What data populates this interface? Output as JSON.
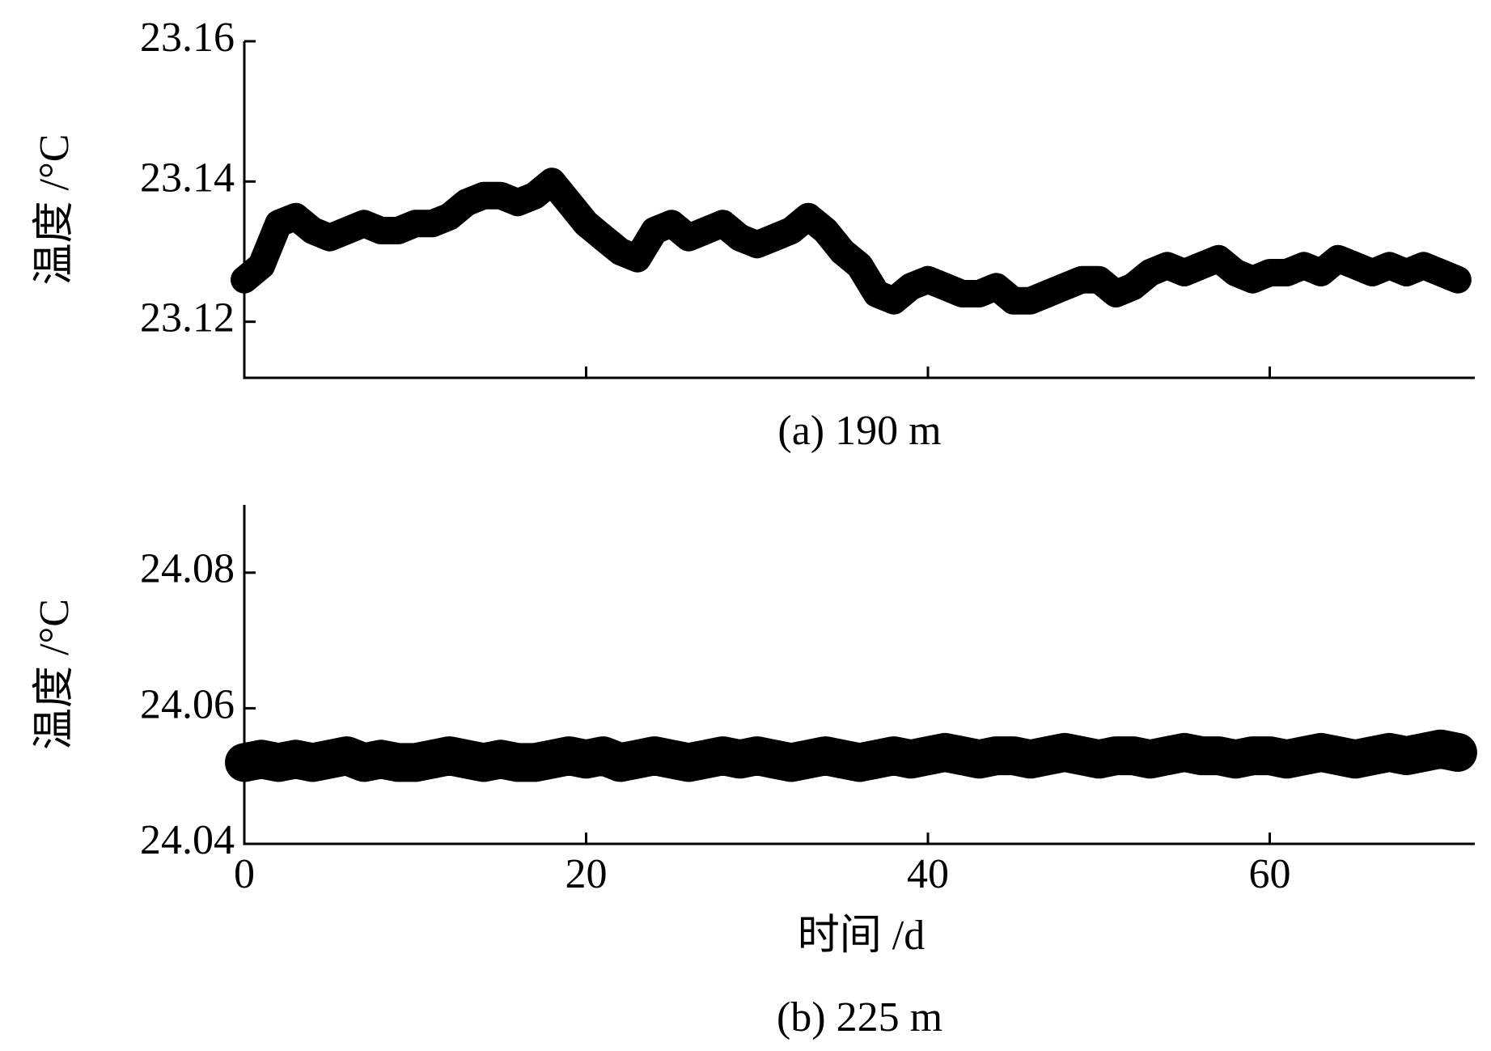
{
  "chart_data": [
    {
      "type": "line",
      "caption": "(a) 190 m",
      "y_label": "温度 /°C",
      "x": [
        0,
        1,
        2,
        3,
        4,
        5,
        6,
        7,
        8,
        9,
        10,
        11,
        12,
        13,
        14,
        15,
        16,
        17,
        18,
        19,
        20,
        21,
        22,
        23,
        24,
        25,
        26,
        27,
        28,
        29,
        30,
        31,
        32,
        33,
        34,
        35,
        36,
        37,
        38,
        39,
        40,
        41,
        42,
        43,
        44,
        45,
        46,
        47,
        48,
        49,
        50,
        51,
        52,
        53,
        54,
        55,
        56,
        57,
        58,
        59,
        60,
        61,
        62,
        63,
        64,
        65,
        66,
        67,
        68,
        69,
        70,
        71
      ],
      "series": [
        {
          "color": "#000000",
          "values": [
            23.126,
            23.128,
            23.134,
            23.135,
            23.133,
            23.132,
            23.133,
            23.134,
            23.133,
            23.133,
            23.134,
            23.134,
            23.135,
            23.137,
            23.138,
            23.138,
            23.137,
            23.138,
            23.14,
            23.137,
            23.134,
            23.132,
            23.13,
            23.129,
            23.133,
            23.134,
            23.132,
            23.133,
            23.134,
            23.132,
            23.131,
            23.132,
            23.133,
            23.135,
            23.133,
            23.13,
            23.128,
            23.124,
            23.123,
            23.125,
            23.126,
            23.125,
            23.124,
            23.124,
            23.125,
            23.123,
            23.123,
            23.124,
            23.125,
            23.126,
            23.126,
            23.124,
            23.125,
            23.127,
            23.128,
            23.127,
            23.128,
            23.129,
            23.127,
            23.126,
            23.127,
            23.127,
            23.128,
            23.127,
            23.129,
            23.128,
            23.127,
            23.128,
            23.127,
            23.128,
            23.127,
            23.126
          ]
        }
      ],
      "xlim": [
        0,
        72
      ],
      "ylim": [
        23.112,
        23.16
      ],
      "yticks": [
        23.12,
        23.14,
        23.16
      ]
    },
    {
      "type": "line",
      "caption": "(b) 225 m",
      "y_label": "温度 /°C",
      "x_label": "时间 /d",
      "x": [
        0,
        1,
        2,
        3,
        4,
        5,
        6,
        7,
        8,
        9,
        10,
        11,
        12,
        13,
        14,
        15,
        16,
        17,
        18,
        19,
        20,
        21,
        22,
        23,
        24,
        25,
        26,
        27,
        28,
        29,
        30,
        31,
        32,
        33,
        34,
        35,
        36,
        37,
        38,
        39,
        40,
        41,
        42,
        43,
        44,
        45,
        46,
        47,
        48,
        49,
        50,
        51,
        52,
        53,
        54,
        55,
        56,
        57,
        58,
        59,
        60,
        61,
        62,
        63,
        64,
        65,
        66,
        67,
        68,
        69,
        70,
        71
      ],
      "series": [
        {
          "color": "#000000",
          "values": [
            24.052,
            24.0525,
            24.052,
            24.0525,
            24.052,
            24.0525,
            24.053,
            24.052,
            24.0525,
            24.052,
            24.052,
            24.0525,
            24.053,
            24.0525,
            24.052,
            24.0525,
            24.052,
            24.052,
            24.0525,
            24.053,
            24.0525,
            24.053,
            24.052,
            24.0525,
            24.053,
            24.0525,
            24.052,
            24.0525,
            24.053,
            24.0525,
            24.053,
            24.0525,
            24.052,
            24.0525,
            24.053,
            24.0525,
            24.052,
            24.0525,
            24.053,
            24.0525,
            24.053,
            24.0535,
            24.053,
            24.0525,
            24.053,
            24.053,
            24.0525,
            24.053,
            24.0535,
            24.053,
            24.0525,
            24.053,
            24.053,
            24.0525,
            24.053,
            24.0535,
            24.053,
            24.053,
            24.0525,
            24.053,
            24.053,
            24.0525,
            24.053,
            24.0535,
            24.053,
            24.0525,
            24.053,
            24.0535,
            24.053,
            24.0535,
            24.054,
            24.0535
          ]
        }
      ],
      "xlim": [
        0,
        72
      ],
      "ylim": [
        24.04,
        24.09
      ],
      "yticks": [
        24.04,
        24.06,
        24.08
      ],
      "xticks": [
        0,
        20,
        40,
        60
      ]
    }
  ]
}
